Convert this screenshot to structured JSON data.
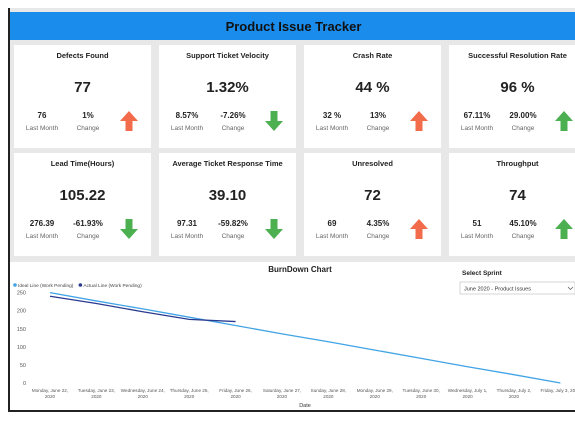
{
  "header": {
    "title": "Product Issue Tracker"
  },
  "cards": [
    {
      "title": "Defects Found",
      "value": "77",
      "last_month": "76",
      "last_month_label": "Last Month",
      "change": "1%",
      "change_label": "Change",
      "arrow": "up",
      "arrow_color": "#f26b4a"
    },
    {
      "title": "Support Ticket Velocity",
      "value": "1.32%",
      "last_month": "8.57%",
      "last_month_label": "Last Month",
      "change": "-7.26%",
      "change_label": "Change",
      "arrow": "down",
      "arrow_color": "#4caf50"
    },
    {
      "title": "Crash Rate",
      "value": "44 %",
      "last_month": "32 %",
      "last_month_label": "Last Month",
      "change": "13%",
      "change_label": "Change",
      "arrow": "up",
      "arrow_color": "#f26b4a"
    },
    {
      "title": "Successful Resolution Rate",
      "value": "96 %",
      "last_month": "67.11%",
      "last_month_label": "Last Month",
      "change": "29.00%",
      "change_label": "Change",
      "arrow": "up",
      "arrow_color": "#4caf50"
    },
    {
      "title": "Lead Time(Hours)",
      "value": "105.22",
      "last_month": "276.39",
      "last_month_label": "Last Month",
      "change": "-61.93%",
      "change_label": "Change",
      "arrow": "down",
      "arrow_color": "#4caf50"
    },
    {
      "title": "Average Ticket Response Time",
      "value": "39.10",
      "last_month": "97.31",
      "last_month_label": "Last Month",
      "change": "-59.82%",
      "change_label": "Change",
      "arrow": "down",
      "arrow_color": "#4caf50"
    },
    {
      "title": "Unresolved",
      "value": "72",
      "last_month": "69",
      "last_month_label": "Last Month",
      "change": "4.35%",
      "change_label": "Change",
      "arrow": "up",
      "arrow_color": "#f26b4a"
    },
    {
      "title": "Throughput",
      "value": "74",
      "last_month": "51",
      "last_month_label": "Last Month",
      "change": "45.10%",
      "change_label": "Change",
      "arrow": "up",
      "arrow_color": "#4caf50"
    }
  ],
  "sprint_selector": {
    "label": "Select Sprint",
    "selected": "June 2020 - Product Issues"
  },
  "chart_data": {
    "type": "line",
    "title": "BurnDown Chart",
    "xlabel": "Date",
    "categories": [
      "Monday, June 22, 2020",
      "Tuesday, June 23, 2020",
      "Wednesday, June 24, 2020",
      "Thursday, June 25, 2020",
      "Friday, June 26, 2020",
      "Saturday, June 27, 2020",
      "Sunday, June 28, 2020",
      "Monday, June 29, 2020",
      "Tuesday, June 30, 2020",
      "Wednesday, July 1, 2020",
      "Thursday, July 2, 2020",
      "Friday, July 3, 2020"
    ],
    "series": [
      {
        "name": "Ideal Line (Work Pending)",
        "color": "#41a4e6",
        "values": [
          250,
          227,
          205,
          182,
          159,
          136,
          114,
          91,
          68,
          45,
          23,
          0
        ]
      },
      {
        "name": "Actual Line (Work Pending)",
        "color": "#2a3b8f",
        "values": [
          240,
          220,
          197,
          176,
          170,
          null,
          null,
          null,
          null,
          null,
          null,
          null
        ]
      }
    ],
    "ylim": [
      0,
      260
    ],
    "yticks": [
      0,
      50,
      100,
      150,
      200,
      250
    ],
    "legend": "top-left"
  }
}
